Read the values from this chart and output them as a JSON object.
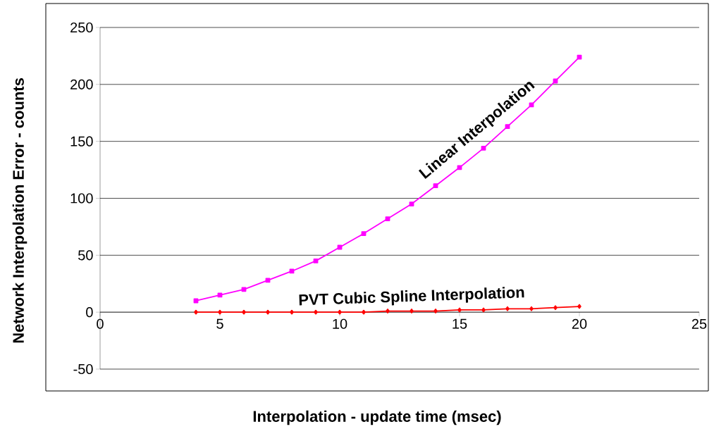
{
  "chart_data": {
    "type": "line",
    "xlabel": "Interpolation - update time (msec)",
    "ylabel": "Network Interpolation Error - counts",
    "x": [
      4,
      5,
      6,
      7,
      8,
      9,
      10,
      11,
      12,
      13,
      14,
      15,
      16,
      17,
      18,
      19,
      20
    ],
    "series": [
      {
        "color": "#ff00ff",
        "marker": "square",
        "values": [
          10,
          15,
          20,
          28,
          36,
          45,
          57,
          69,
          82,
          95,
          111,
          127,
          144,
          163,
          182,
          203,
          224
        ]
      },
      {
        "color": "#ff0000",
        "marker": "diamond",
        "values": [
          0,
          0,
          0,
          0,
          0,
          0,
          0,
          0,
          1,
          1,
          1,
          2,
          2,
          3,
          3,
          4,
          5
        ]
      }
    ],
    "annotations": [
      "Linear Interpolation",
      "PVT Cubic Spline Interpolation"
    ],
    "xlim": [
      0,
      25
    ],
    "xticks": [
      0,
      5,
      10,
      15,
      20,
      25
    ],
    "ylim": [
      -50,
      250
    ],
    "yticks": [
      -50,
      0,
      50,
      100,
      150,
      200,
      250
    ],
    "grid": "y"
  }
}
